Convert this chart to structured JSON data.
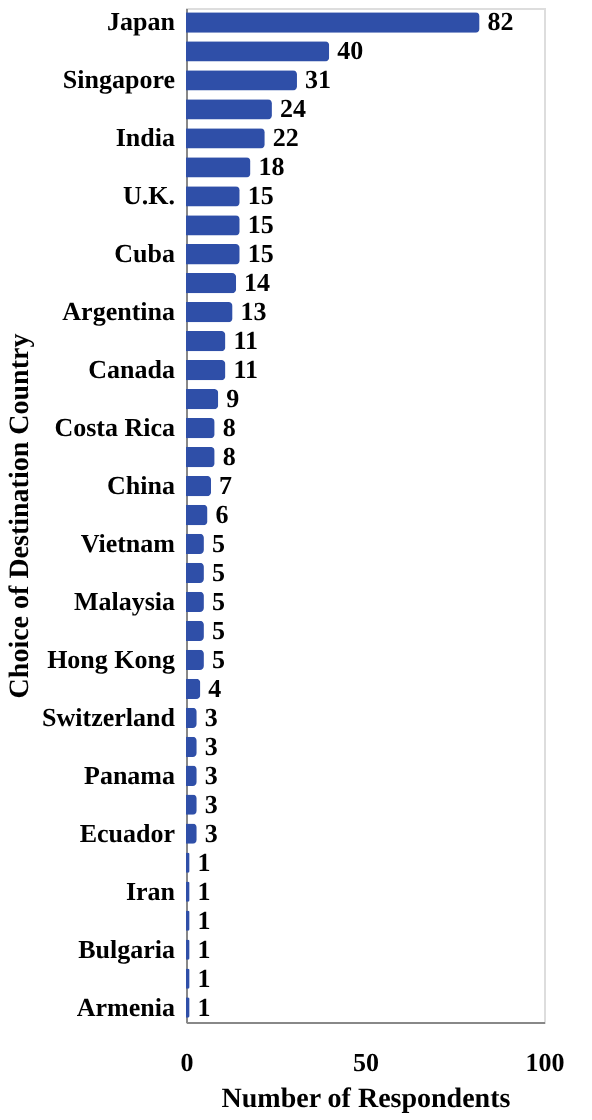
{
  "chart_data": {
    "type": "bar",
    "orientation": "horizontal",
    "xlabel": "Number of Respondents",
    "ylabel": "Choice of Destination Country",
    "categories": [
      "Japan",
      null,
      "Singapore",
      null,
      "India",
      null,
      "U.K.",
      null,
      "Cuba",
      null,
      "Argentina",
      null,
      "Canada",
      null,
      "Costa Rica",
      null,
      "China",
      null,
      "Vietnam",
      null,
      "Malaysia",
      null,
      "Hong Kong",
      null,
      "Switzerland",
      null,
      "Panama",
      null,
      "Ecuador",
      null,
      "Iran",
      null,
      "Bulgaria",
      null,
      "Armenia"
    ],
    "values": [
      82,
      40,
      31,
      24,
      22,
      18,
      15,
      15,
      15,
      14,
      13,
      11,
      11,
      9,
      8,
      8,
      7,
      6,
      5,
      5,
      5,
      5,
      5,
      4,
      3,
      3,
      3,
      3,
      3,
      1,
      1,
      1,
      1,
      1,
      1
    ],
    "color": "#2f4fa8",
    "xlim": [
      0,
      100
    ],
    "xticks": [
      0,
      50,
      100
    ],
    "grid": false,
    "data_labels": true
  }
}
